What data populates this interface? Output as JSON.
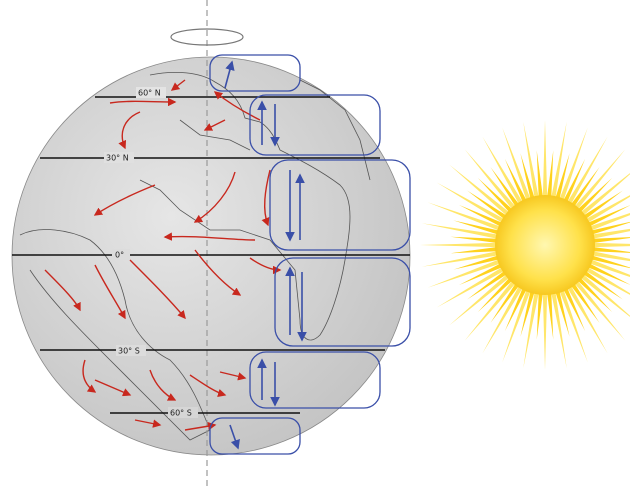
{
  "latitude_labels": [
    "60° N",
    "30° N",
    "0°",
    "30° S",
    "60° S"
  ]
}
